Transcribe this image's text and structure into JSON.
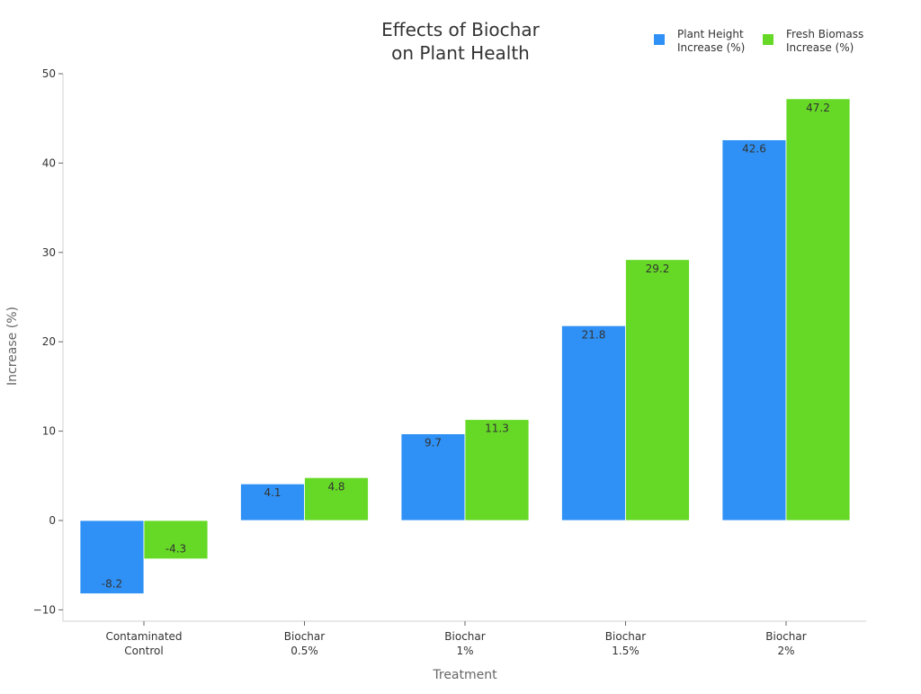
{
  "chart_data": {
    "type": "bar",
    "title": "Effects of Biochar\non Plant Health",
    "xlabel": "Treatment",
    "ylabel": "Increase (%)",
    "ylim": [
      -11.2,
      50
    ],
    "yticks": [
      -10,
      0,
      10,
      20,
      30,
      40,
      50
    ],
    "ytick_labels": [
      "−10",
      "0",
      "10",
      "20",
      "30",
      "40",
      "50"
    ],
    "categories": [
      "Contaminated\nControl",
      "Biochar\n0.5%",
      "Biochar\n1%",
      "Biochar\n1.5%",
      "Biochar\n2%"
    ],
    "series": [
      {
        "name": "Plant Height\nIncrease (%)",
        "color": "#2f91f5",
        "values": [
          -8.2,
          4.1,
          9.7,
          21.8,
          42.6
        ]
      },
      {
        "name": "Fresh Biomass\nIncrease (%)",
        "color": "#66d926",
        "values": [
          -4.3,
          4.8,
          11.3,
          29.2,
          47.2
        ]
      }
    ],
    "legend_position": "top-right",
    "grid": false
  }
}
